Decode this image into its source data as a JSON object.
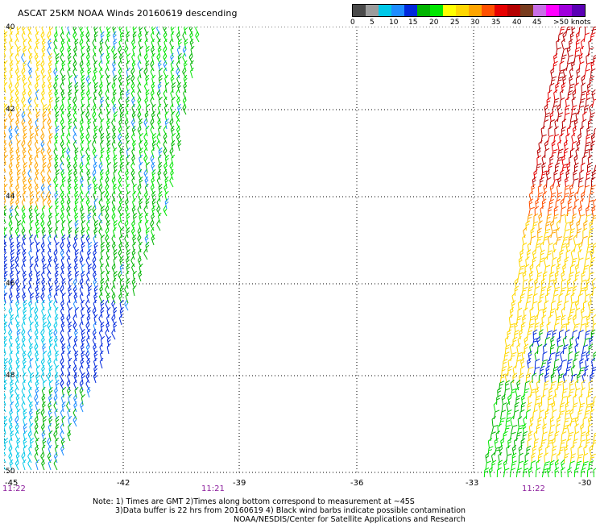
{
  "header": {
    "title": "ASCAT 25KM NOAA Winds 20160619 descending"
  },
  "legend": {
    "colors": [
      "#4a4a4a",
      "#9c9c9c",
      "#00c8e8",
      "#1e8cff",
      "#0028dc",
      "#00b400",
      "#00e600",
      "#ffff00",
      "#ffd700",
      "#ffa500",
      "#ff5000",
      "#e60000",
      "#b40000",
      "#783c1e",
      "#c86ee6",
      "#ff00ff",
      "#a000dc",
      "#5a00b4"
    ],
    "labels": [
      "0",
      "5",
      "10",
      "15",
      "20",
      "25",
      "30",
      "35",
      "40",
      "45",
      ">50 knots"
    ],
    "unit": "knots"
  },
  "map": {
    "lat_labels": [
      "40",
      "42",
      "44",
      "46",
      "48",
      "50"
    ],
    "lon_labels": [
      "-42",
      "-39",
      "-36",
      "-33"
    ],
    "lon_left": "-45",
    "lon_right": "-30",
    "time_labels": [
      "11:22",
      "11:21",
      "11:22"
    ]
  },
  "notes": {
    "line1": "Note: 1) Times are GMT 2)Times along bottom correspond to measurement at ~45S",
    "line2": "3)Data buffer is 22 hrs from 20160619 4) Black wind barbs indicate possible contamination",
    "line3": "NOAA/NESDIS/Center for Satellite Applications and Research"
  }
}
